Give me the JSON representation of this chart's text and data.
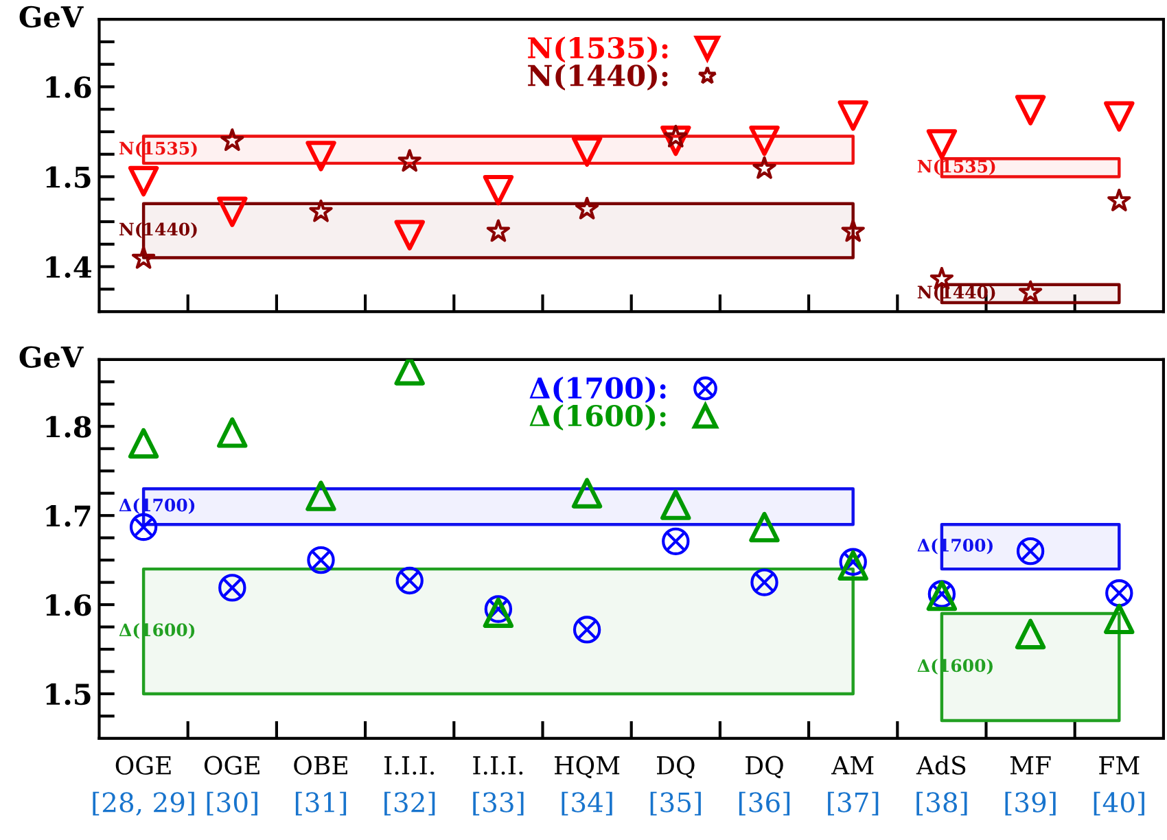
{
  "chart_data": [
    {
      "type": "scatter",
      "categories": [
        null,
        null,
        null,
        null,
        null,
        null,
        null,
        null,
        null,
        null,
        null,
        null
      ],
      "ylabel": "GeV",
      "ylim": [
        1.35,
        1.675
      ],
      "yticks": [
        {
          "value": 1.375,
          "label": null
        },
        1.4,
        {
          "value": 1.425,
          "label": null
        },
        {
          "value": 1.45,
          "label": null
        },
        {
          "value": 1.475,
          "label": null
        },
        1.5,
        {
          "value": 1.525,
          "label": null
        },
        {
          "value": 1.55,
          "label": null
        },
        {
          "value": 1.575,
          "label": null
        },
        1.6,
        {
          "value": 1.625,
          "label": null
        },
        {
          "value": 1.65,
          "label": null
        }
      ],
      "tick_labels": "y",
      "legend": "top",
      "series": [
        {
          "name": "N(1535):",
          "color": "#ff0000",
          "marker": "triangle_down",
          "values": [
            1.495,
            1.461,
            1.523,
            1.435,
            1.485,
            1.528,
            1.54,
            1.54,
            1.568,
            1.536,
            1.574,
            1.567
          ]
        },
        {
          "name": "N(1440):",
          "color": "#8b0000",
          "marker": "star",
          "values": [
            1.409,
            1.54,
            1.461,
            1.517,
            1.439,
            1.464,
            1.544,
            1.509,
            1.439,
            1.386,
            1.371,
            1.473
          ]
        },
        {
          "name": "N(1535)",
          "type": "area",
          "color": "#ee1111",
          "values": [
            null,
            null,
            null,
            null,
            null,
            null,
            null,
            null,
            null,
            null,
            null,
            null
          ],
          "lower": [
            1.515,
            1.515,
            1.515,
            1.515,
            1.515,
            1.515,
            1.515,
            1.515,
            1.515,
            1.5,
            1.5,
            1.5
          ],
          "upper": [
            1.545,
            1.545,
            1.545,
            1.545,
            1.545,
            1.545,
            1.545,
            1.545,
            1.545,
            1.52,
            1.52,
            1.52
          ]
        },
        {
          "name": "N(1440)",
          "type": "area",
          "color": "#7a0000",
          "values": [
            null,
            null,
            null,
            null,
            null,
            null,
            null,
            null,
            null,
            null,
            null,
            null
          ],
          "lower": [
            1.41,
            1.41,
            1.41,
            1.41,
            1.41,
            1.41,
            1.41,
            1.41,
            1.41,
            1.36,
            1.36,
            1.36
          ],
          "upper": [
            1.47,
            1.47,
            1.47,
            1.47,
            1.47,
            1.47,
            1.47,
            1.47,
            1.47,
            1.38,
            1.38,
            1.38
          ]
        }
      ]
    },
    {
      "type": "scatter",
      "categories": [
        "OGE\n[28, 29]",
        "OGE\n[30]",
        "OBE\n[31]",
        "I.I.I.\n[32]",
        "I.I.I.\n[33]",
        "HQM\n[34]",
        "DQ\n[35]",
        "DQ\n[36]",
        "AM\n[37]",
        "AdS\n[38]",
        "MF\n[39]",
        "FM\n[40]"
      ],
      "ylabel": "GeV",
      "ylim": [
        1.45,
        1.875
      ],
      "yticks": [
        {
          "value": 1.475,
          "label": null
        },
        1.5,
        {
          "value": 1.525,
          "label": null
        },
        {
          "value": 1.55,
          "label": null
        },
        {
          "value": 1.575,
          "label": null
        },
        1.6,
        {
          "value": 1.625,
          "label": null
        },
        {
          "value": 1.65,
          "label": null
        },
        {
          "value": 1.675,
          "label": null
        },
        1.7,
        {
          "value": 1.725,
          "label": null
        },
        {
          "value": 1.75,
          "label": null
        },
        {
          "value": 1.775,
          "label": null
        },
        1.8,
        {
          "value": 1.825,
          "label": null
        },
        {
          "value": 1.85,
          "label": null
        }
      ],
      "legend": "top",
      "series": [
        {
          "name": "Δ(1700):",
          "color": "#0000ff",
          "marker": "cross",
          "values": [
            1.687,
            1.619,
            1.65,
            1.627,
            1.595,
            1.572,
            1.671,
            1.625,
            1.648,
            1.612,
            1.66,
            1.613
          ]
        },
        {
          "name": "Δ(1600):",
          "color": "#009900",
          "marker": "triangle",
          "values": [
            1.781,
            1.793,
            1.722,
            1.863,
            1.591,
            1.725,
            1.712,
            1.687,
            1.644,
            1.61,
            1.567,
            1.584
          ]
        },
        {
          "name": "Δ(1700)",
          "type": "area",
          "color": "#1111ee",
          "values": [
            null,
            null,
            null,
            null,
            null,
            null,
            null,
            null,
            null,
            null,
            null,
            null
          ],
          "lower": [
            1.69,
            1.69,
            1.69,
            1.69,
            1.69,
            1.69,
            1.69,
            1.69,
            1.69,
            1.64,
            1.64,
            1.64
          ],
          "upper": [
            1.73,
            1.73,
            1.73,
            1.73,
            1.73,
            1.73,
            1.73,
            1.73,
            1.73,
            1.69,
            1.69,
            1.69
          ]
        },
        {
          "name": "Δ(1600)",
          "type": "area",
          "color": "#22a022",
          "values": [
            null,
            null,
            null,
            null,
            null,
            null,
            null,
            null,
            null,
            null,
            null,
            null
          ],
          "lower": [
            1.5,
            1.5,
            1.5,
            1.5,
            1.5,
            1.5,
            1.5,
            1.5,
            1.5,
            1.47,
            1.47,
            1.47
          ],
          "upper": [
            1.64,
            1.64,
            1.64,
            1.64,
            1.64,
            1.64,
            1.64,
            1.64,
            1.64,
            1.59,
            1.59,
            1.59
          ]
        }
      ]
    }
  ]
}
